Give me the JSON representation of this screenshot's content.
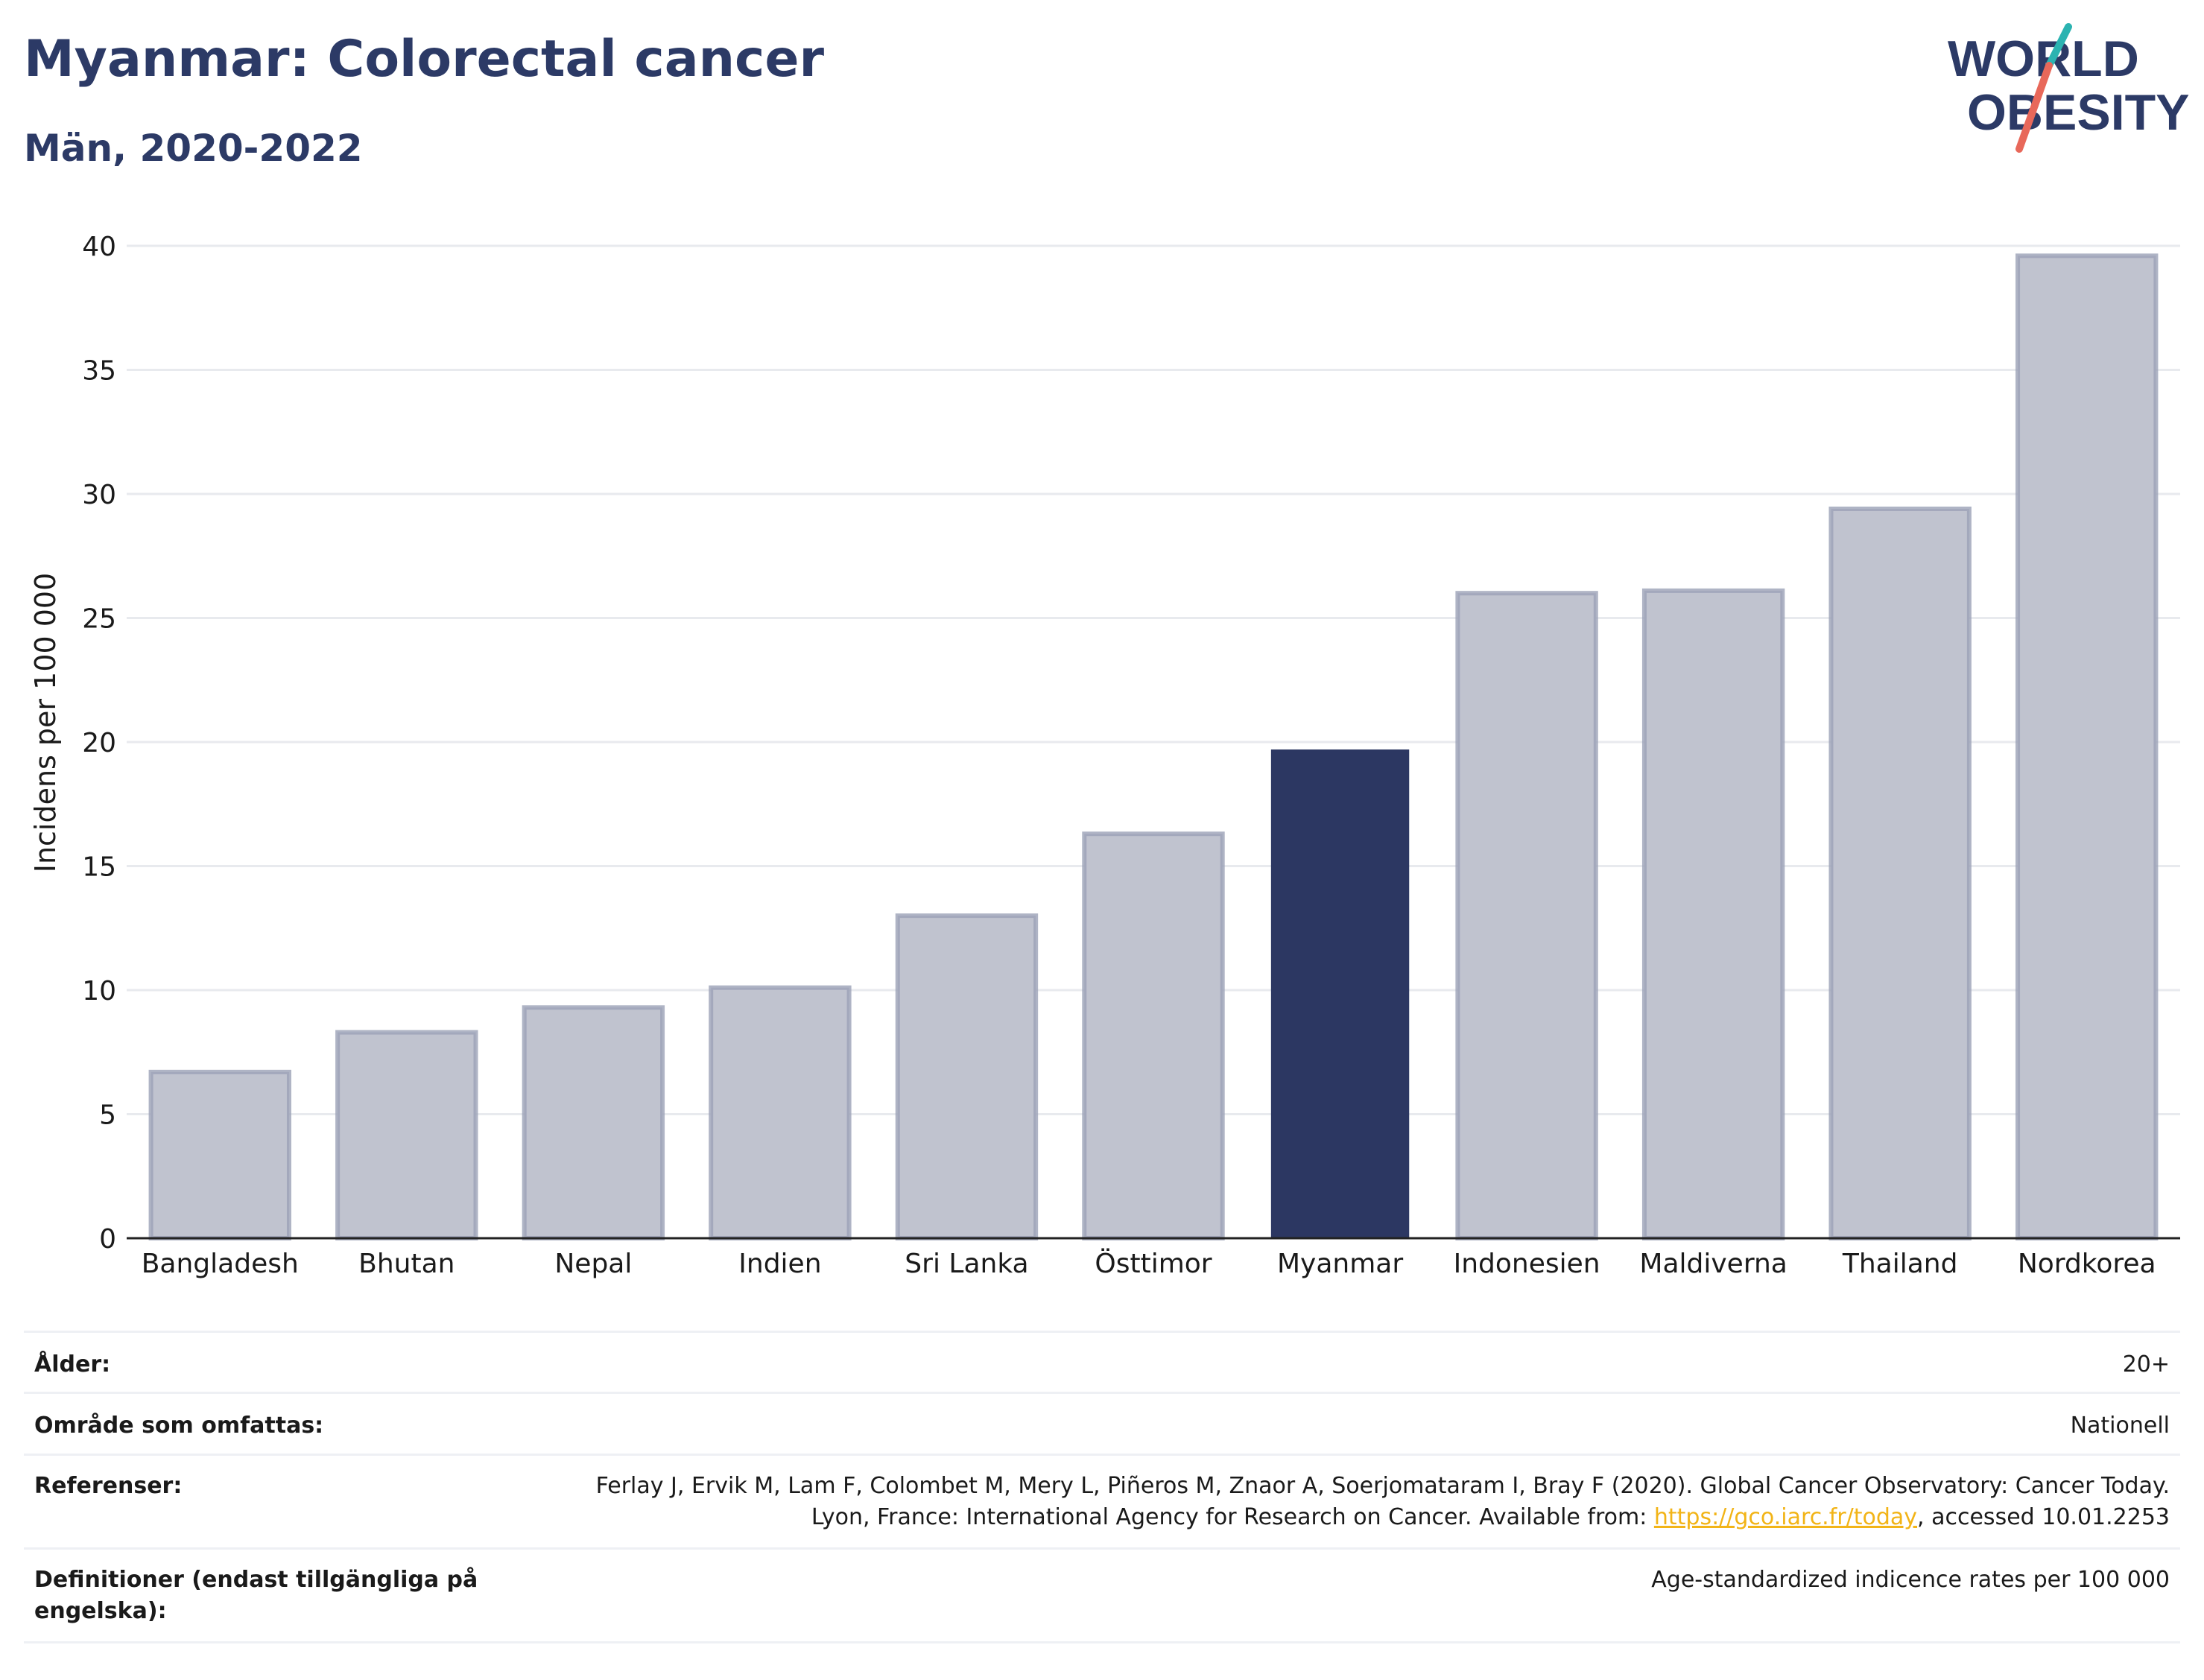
{
  "header": {
    "title": "Myanmar: Colorectal cancer",
    "subtitle": "Män, 2020-2022"
  },
  "logo": {
    "line1": "WORLD",
    "line2": "OBESITY",
    "colors": {
      "text": "#2c3a66",
      "teal": "#2bb3b1",
      "coral": "#e8685a"
    }
  },
  "chart_data": {
    "type": "bar",
    "categories": [
      "Bangladesh",
      "Bhutan",
      "Nepal",
      "Indien",
      "Sri Lanka",
      "Östtimor",
      "Myanmar",
      "Indonesien",
      "Maldiverna",
      "Thailand",
      "Nordkorea"
    ],
    "values": [
      6.7,
      8.3,
      9.3,
      10.1,
      13.0,
      16.3,
      19.7,
      26.0,
      26.1,
      29.4,
      39.6
    ],
    "highlight": "Myanmar",
    "ylabel": "Incidens per 100 000",
    "ylim": [
      0,
      40
    ],
    "yticks": [
      0,
      5,
      10,
      15,
      20,
      25,
      30,
      35,
      40
    ],
    "grid": true,
    "colors": {
      "bar": "#c0c3cf",
      "bar_edge": "#9ba1b6",
      "highlight": "#2c3762",
      "grid": "#e8eaee",
      "axis": "#222222"
    }
  },
  "meta": {
    "age_label": "Ålder:",
    "age_value": "20+",
    "area_label": "Område som omfattas:",
    "area_value": "Nationell",
    "ref_label": "Referenser:",
    "ref_text_1": "Ferlay J, Ervik M, Lam F, Colombet M, Mery L, Piñeros M, Znaor A, Soerjomataram I, Bray F (2020). Global Cancer Observatory: Cancer Today. Lyon, France: International Agency for Research on Cancer. Available from: ",
    "ref_link": "https://gco.iarc.fr/today",
    "ref_text_2": ", accessed 10.01.2253",
    "def_label": "Definitioner (endast tillgängliga på engelska):",
    "def_value": "Age-standardized indicence rates per 100 000"
  }
}
